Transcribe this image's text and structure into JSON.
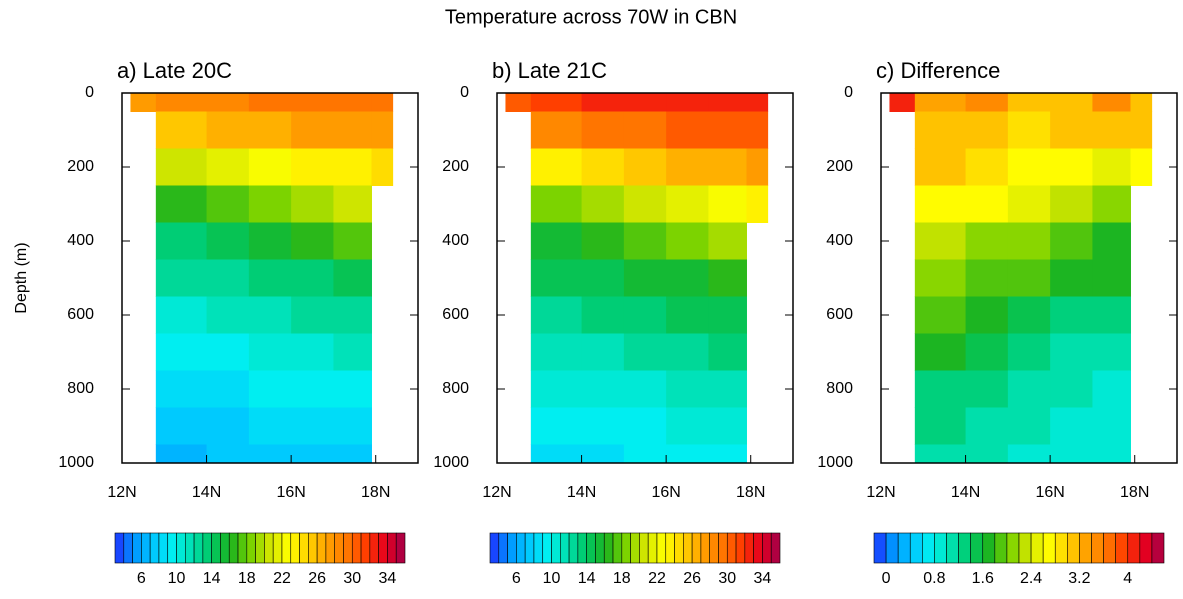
{
  "title": "Temperature across 70W in CBN",
  "chart_data": [
    {
      "type": "heatmap",
      "title": "a) Late 20C",
      "ylabel": "Depth (m)",
      "xlim": [
        12,
        19
      ],
      "ylim": [
        0,
        1000
      ],
      "xticks": [
        {
          "value": 12,
          "label": "12N"
        },
        {
          "value": 14,
          "label": "14N"
        },
        {
          "value": 16,
          "label": "16N"
        },
        {
          "value": 18,
          "label": "18N"
        }
      ],
      "yticks": [
        0,
        200,
        400,
        600,
        800,
        1000
      ],
      "lat_edges": [
        12.2,
        12.8,
        14,
        15,
        16,
        17,
        17.9,
        18.4
      ],
      "depth_edges": [
        0,
        50,
        150,
        250,
        350,
        450,
        550,
        650,
        750,
        850,
        950,
        1000
      ],
      "values": [
        [
          27,
          28,
          28.5,
          29,
          29,
          29,
          29
        ],
        [
          null,
          25,
          26,
          26.5,
          27,
          27.5,
          27.5
        ],
        [
          null,
          20,
          21,
          22,
          23,
          23.5,
          24
        ],
        [
          null,
          16,
          17,
          18,
          19,
          20,
          null
        ],
        [
          null,
          13.5,
          14,
          15,
          16,
          17,
          null
        ],
        [
          null,
          12,
          12.5,
          13,
          13.5,
          14,
          null
        ],
        [
          null,
          10.5,
          11,
          11.5,
          12,
          12.5,
          null
        ],
        [
          null,
          9,
          9.5,
          10,
          10.5,
          11,
          null
        ],
        [
          null,
          8,
          8.5,
          9,
          9.5,
          9.5,
          null
        ],
        [
          null,
          7,
          7.5,
          8,
          8,
          8.5,
          null
        ],
        [
          null,
          6.5,
          7,
          7,
          7.5,
          7.5,
          null
        ]
      ],
      "colorbar": {
        "lim": [
          3,
          36
        ],
        "step": 1,
        "ticks": [
          6,
          10,
          14,
          18,
          22,
          26,
          30,
          34
        ]
      }
    },
    {
      "type": "heatmap",
      "title": "b) Late 21C",
      "xlim": [
        12,
        19
      ],
      "ylim": [
        0,
        1000
      ],
      "xticks": [
        {
          "value": 12,
          "label": "12N"
        },
        {
          "value": 14,
          "label": "14N"
        },
        {
          "value": 16,
          "label": "16N"
        },
        {
          "value": 18,
          "label": "18N"
        }
      ],
      "yticks": [
        0,
        200,
        400,
        600,
        800,
        1000
      ],
      "lat_edges": [
        12.2,
        12.8,
        14,
        15,
        16,
        17,
        17.9,
        18.4
      ],
      "depth_edges": [
        0,
        50,
        150,
        250,
        350,
        450,
        550,
        650,
        750,
        850,
        950,
        1000
      ],
      "values": [
        [
          30,
          31,
          32,
          32,
          32,
          32,
          32
        ],
        [
          null,
          28,
          29,
          29.5,
          30,
          30.5,
          30.5
        ],
        [
          null,
          23,
          24,
          25,
          26,
          26.5,
          27
        ],
        [
          null,
          18.5,
          19.5,
          20.5,
          21.5,
          22.5,
          23
        ],
        [
          null,
          15.5,
          16,
          17,
          18,
          19,
          null
        ],
        [
          null,
          14,
          14.5,
          15,
          15.5,
          16,
          null
        ],
        [
          null,
          12.5,
          13,
          13.5,
          14,
          14.5,
          null
        ],
        [
          null,
          11,
          11.5,
          12,
          12.5,
          13,
          null
        ],
        [
          null,
          10,
          10.5,
          10.5,
          11,
          11,
          null
        ],
        [
          null,
          9,
          9.5,
          9.5,
          10,
          10,
          null
        ],
        [
          null,
          8.5,
          8.5,
          9,
          9,
          9,
          null
        ]
      ],
      "colorbar": {
        "lim": [
          3,
          36
        ],
        "step": 1,
        "ticks": [
          6,
          10,
          14,
          18,
          22,
          26,
          30,
          34
        ]
      }
    },
    {
      "type": "heatmap",
      "title": "c) Difference",
      "xlim": [
        12,
        19
      ],
      "ylim": [
        0,
        1000
      ],
      "xticks": [
        {
          "value": 12,
          "label": "12N"
        },
        {
          "value": 14,
          "label": "14N"
        },
        {
          "value": 16,
          "label": "16N"
        },
        {
          "value": 18,
          "label": "18N"
        }
      ],
      "yticks": [
        0,
        200,
        400,
        600,
        800,
        1000
      ],
      "lat_edges": [
        12.2,
        12.8,
        14,
        15,
        16,
        17,
        17.9,
        18.4
      ],
      "depth_edges": [
        0,
        50,
        150,
        250,
        350,
        450,
        550,
        650,
        750,
        850,
        950,
        1000
      ],
      "values": [
        [
          4,
          3.2,
          3.4,
          3,
          3,
          3.4,
          3
        ],
        [
          null,
          3,
          3,
          2.9,
          3,
          3,
          3
        ],
        [
          null,
          3.1,
          2.9,
          2.7,
          2.6,
          2.5,
          2.6
        ],
        [
          null,
          2.7,
          2.6,
          2.4,
          2.2,
          2,
          null
        ],
        [
          null,
          2.3,
          2.1,
          2,
          1.8,
          1.7,
          null
        ],
        [
          null,
          2,
          1.9,
          1.8,
          1.6,
          1.6,
          null
        ],
        [
          null,
          1.8,
          1.7,
          1.5,
          1.4,
          1.4,
          null
        ],
        [
          null,
          1.6,
          1.5,
          1.3,
          1.2,
          1.2,
          null
        ],
        [
          null,
          1.4,
          1.3,
          1.2,
          1.1,
          1,
          null
        ],
        [
          null,
          1.3,
          1.2,
          1.1,
          1,
          0.9,
          null
        ],
        [
          null,
          1.2,
          1.1,
          1,
          0.9,
          0.8,
          null
        ]
      ],
      "colorbar": {
        "lim": [
          -0.2,
          4.6
        ],
        "step": 0.2,
        "ticks": [
          0,
          0.8,
          1.6,
          2.4,
          3.2,
          4
        ]
      }
    }
  ],
  "colormap": [
    "#1f2fff",
    "#0096ff",
    "#00c8ff",
    "#00f0f0",
    "#00e0b0",
    "#00c864",
    "#1eb41e",
    "#78d200",
    "#d2e600",
    "#ffff00",
    "#ffd200",
    "#ffa000",
    "#ff7800",
    "#ff3c00",
    "#e6001e",
    "#a0004b"
  ]
}
